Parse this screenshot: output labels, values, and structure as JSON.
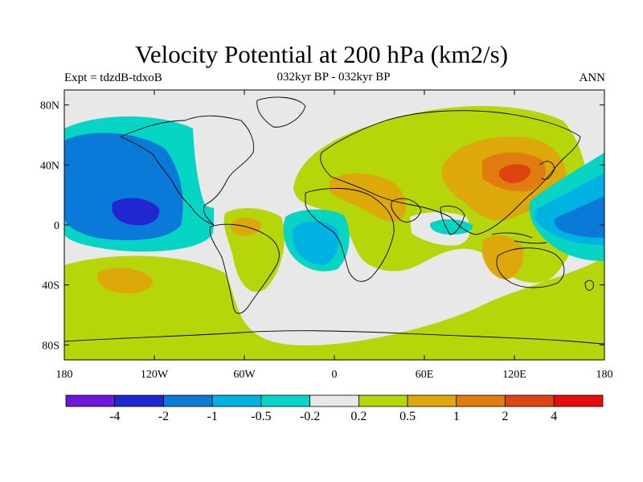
{
  "plot": {
    "title": "Velocity Potential at 200 hPa (km2/s)",
    "left_label": "Expt = tdzdB-tdxoB",
    "center_label": "032kyr BP - 032kyr BP",
    "right_label": "ANN"
  },
  "axes": {
    "y_ticks": [
      {
        "label": "80N",
        "lat": 80
      },
      {
        "label": "40N",
        "lat": 40
      },
      {
        "label": "0",
        "lat": 0
      },
      {
        "label": "40S",
        "lat": -40
      },
      {
        "label": "80S",
        "lat": -80
      }
    ],
    "x_ticks": [
      {
        "label": "180",
        "lon": -180
      },
      {
        "label": "120W",
        "lon": -120
      },
      {
        "label": "60W",
        "lon": -60
      },
      {
        "label": "0",
        "lon": 0
      },
      {
        "label": "60E",
        "lon": 60
      },
      {
        "label": "120E",
        "lon": 120
      },
      {
        "label": "180",
        "lon": 180
      }
    ]
  },
  "colorbar": {
    "colors": [
      "#6a16dc",
      "#2226d0",
      "#0a7ad8",
      "#00b2e2",
      "#06d4c4",
      "#e8e8e8",
      "#b6d60a",
      "#dca80a",
      "#e07c10",
      "#de4410",
      "#e80c0c"
    ],
    "labels": [
      "-4",
      "-2",
      "-1",
      "-0.5",
      "-0.2",
      "0.2",
      "0.5",
      "1",
      "2",
      "4"
    ]
  },
  "colors": {
    "background": "#e8e8e8",
    "coast": "#000000"
  }
}
